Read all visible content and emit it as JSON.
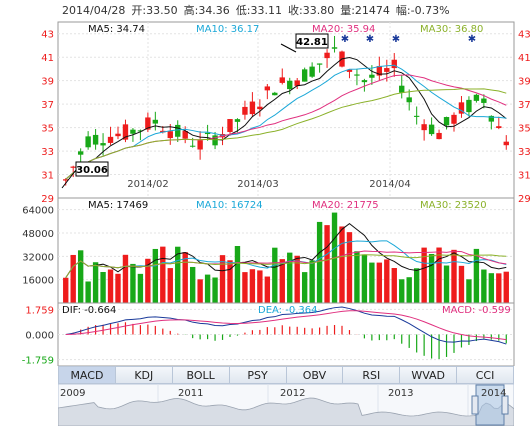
{
  "header": {
    "date": "2014/04/28",
    "open": "开:33.50",
    "high": "高:34.36",
    "low": "低:33.11",
    "close": "收:33.80",
    "volume": "量:21474",
    "change": "幅:-0.73%"
  },
  "price_panel": {
    "ma_labels": [
      "MA5: 34.74",
      "MA10: 36.17",
      "MA20: 35.94",
      "MA30: 36.80"
    ],
    "y_ticks": [
      "43",
      "41",
      "39",
      "37",
      "35",
      "33",
      "31",
      "29"
    ],
    "x_ticks": [
      "2014/02",
      "2014/03",
      "2014/04"
    ],
    "high_marker": "42.81",
    "low_marker": "30.06"
  },
  "volume_panel": {
    "ma_labels": [
      "MA5: 17469",
      "MA10: 16724",
      "MA20: 21775",
      "MA30: 23520"
    ],
    "y_ticks": [
      "64000",
      "48000",
      "32000",
      "16000"
    ]
  },
  "macd_panel": {
    "labels": [
      "DIF: -0.664",
      "DEA: -0.364",
      "MACD: -0.599"
    ],
    "y_ticks": [
      "1.759",
      "0.000",
      "-1.759"
    ]
  },
  "tabs": [
    "MACD",
    "KDJ",
    "BOLL",
    "PSY",
    "OBV",
    "RSI",
    "WVAD",
    "CCI"
  ],
  "active_tab": "MACD",
  "overview_years": [
    "2009",
    "2011",
    "2012",
    "2013",
    "2014"
  ],
  "colors": {
    "up": "#ee1c1c",
    "down": "#18a818",
    "ma5": "#111111",
    "ma10": "#1ba8d8",
    "ma20": "#e0307f",
    "ma30": "#8bb12a",
    "star": "#1a3a9a"
  },
  "chart_data": {
    "type": "candlestick",
    "ohlc_sample": {
      "first_low": 30.06,
      "peak_high": 42.81,
      "last": {
        "open": 33.5,
        "high": 34.36,
        "low": 33.11,
        "close": 33.8
      }
    }
  }
}
